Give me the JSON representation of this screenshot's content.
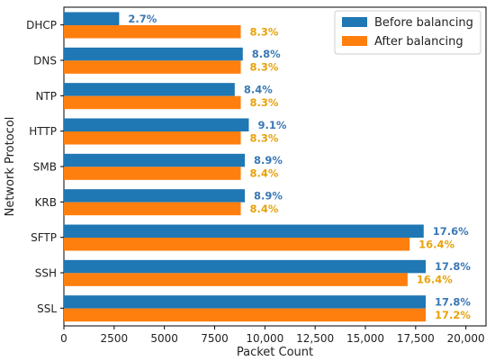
{
  "chart_data": {
    "type": "bar",
    "orientation": "horizontal",
    "xlabel": "Packet Count",
    "ylabel": "Network Protocol",
    "xlim": [
      0,
      21000
    ],
    "xticks": [
      0,
      2500,
      5000,
      7500,
      10000,
      12500,
      15000,
      17500,
      20000
    ],
    "xtick_labels": [
      "0",
      "2500",
      "5000",
      "7500",
      "10,000",
      "12,500",
      "15,000",
      "17,500",
      "20,000"
    ],
    "categories": [
      "DHCP",
      "DNS",
      "NTP",
      "HTTP",
      "SMB",
      "KRB",
      "SFTP",
      "SSH",
      "SSL"
    ],
    "series": [
      {
        "name": "Before balancing",
        "color": "#1f77b4",
        "label_color": "#3a78b5",
        "values": [
          2750,
          8900,
          8500,
          9200,
          9000,
          9000,
          17900,
          18000,
          18000
        ],
        "labels": [
          "2.7%",
          "8.8%",
          "8.4%",
          "9.1%",
          "8.9%",
          "8.9%",
          "17.6%",
          "17.8%",
          "17.8%"
        ]
      },
      {
        "name": "After balancing",
        "color": "#ff7f0e",
        "label_color": "#e8a20c",
        "values": [
          8800,
          8800,
          8800,
          8800,
          8800,
          8800,
          17200,
          17100,
          18000
        ],
        "labels": [
          "8.3%",
          "8.3%",
          "8.3%",
          "8.3%",
          "8.4%",
          "8.4%",
          "16.4%",
          "16.4%",
          "17.2%"
        ]
      }
    ],
    "legend_position": "top-right",
    "grid": false
  }
}
